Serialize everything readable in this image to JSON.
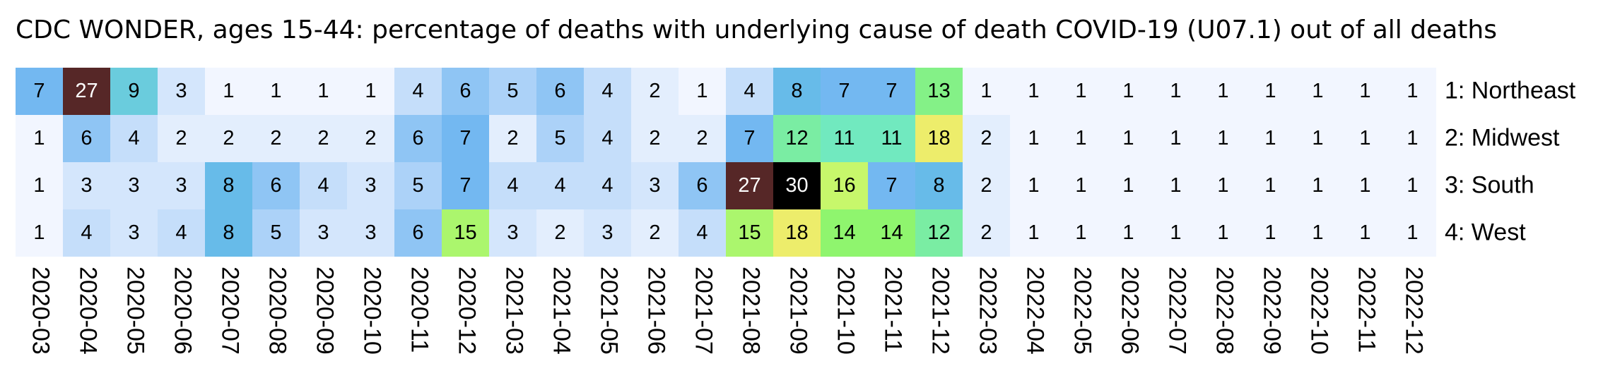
{
  "chart_data": {
    "type": "heatmap",
    "title": "CDC WONDER, ages 15-44: percentage of deaths with underlying cause of death COVID-19 (U07.1) out of all deaths",
    "x": [
      "2020-03",
      "2020-04",
      "2020-05",
      "2020-06",
      "2020-07",
      "2020-08",
      "2020-09",
      "2020-10",
      "2020-11",
      "2020-12",
      "2021-03",
      "2021-04",
      "2021-05",
      "2021-06",
      "2021-07",
      "2021-08",
      "2021-09",
      "2021-10",
      "2021-11",
      "2021-12",
      "2022-03",
      "2022-04",
      "2022-05",
      "2022-06",
      "2022-07",
      "2022-08",
      "2022-09",
      "2022-10",
      "2022-11",
      "2022-12"
    ],
    "series": [
      {
        "name": "1: Northeast",
        "values": [
          7,
          27,
          9,
          3,
          1,
          1,
          1,
          1,
          4,
          6,
          5,
          6,
          4,
          2,
          1,
          4,
          8,
          7,
          7,
          13,
          1,
          1,
          1,
          1,
          1,
          1,
          1,
          1,
          1,
          1
        ]
      },
      {
        "name": "2: Midwest",
        "values": [
          1,
          6,
          4,
          2,
          2,
          2,
          2,
          2,
          6,
          7,
          2,
          5,
          4,
          2,
          2,
          7,
          12,
          11,
          11,
          18,
          2,
          1,
          1,
          1,
          1,
          1,
          1,
          1,
          1,
          1
        ]
      },
      {
        "name": "3: South",
        "values": [
          1,
          3,
          3,
          3,
          8,
          6,
          4,
          3,
          5,
          7,
          4,
          4,
          4,
          3,
          6,
          27,
          30,
          16,
          7,
          8,
          2,
          1,
          1,
          1,
          1,
          1,
          1,
          1,
          1,
          1
        ]
      },
      {
        "name": "4: West",
        "values": [
          1,
          4,
          3,
          4,
          8,
          5,
          3,
          3,
          6,
          15,
          3,
          2,
          3,
          2,
          4,
          15,
          18,
          14,
          14,
          12,
          2,
          1,
          1,
          1,
          1,
          1,
          1,
          1,
          1,
          1
        ]
      }
    ],
    "colormap": [
      "#f2f6ff",
      "#c2dcfa",
      "#66b2f0",
      "#6ee8c8",
      "#8cf56e",
      "#e6f86a",
      "#ffd06c",
      "#c87a50",
      "#5c2a2a",
      "#000000"
    ]
  }
}
